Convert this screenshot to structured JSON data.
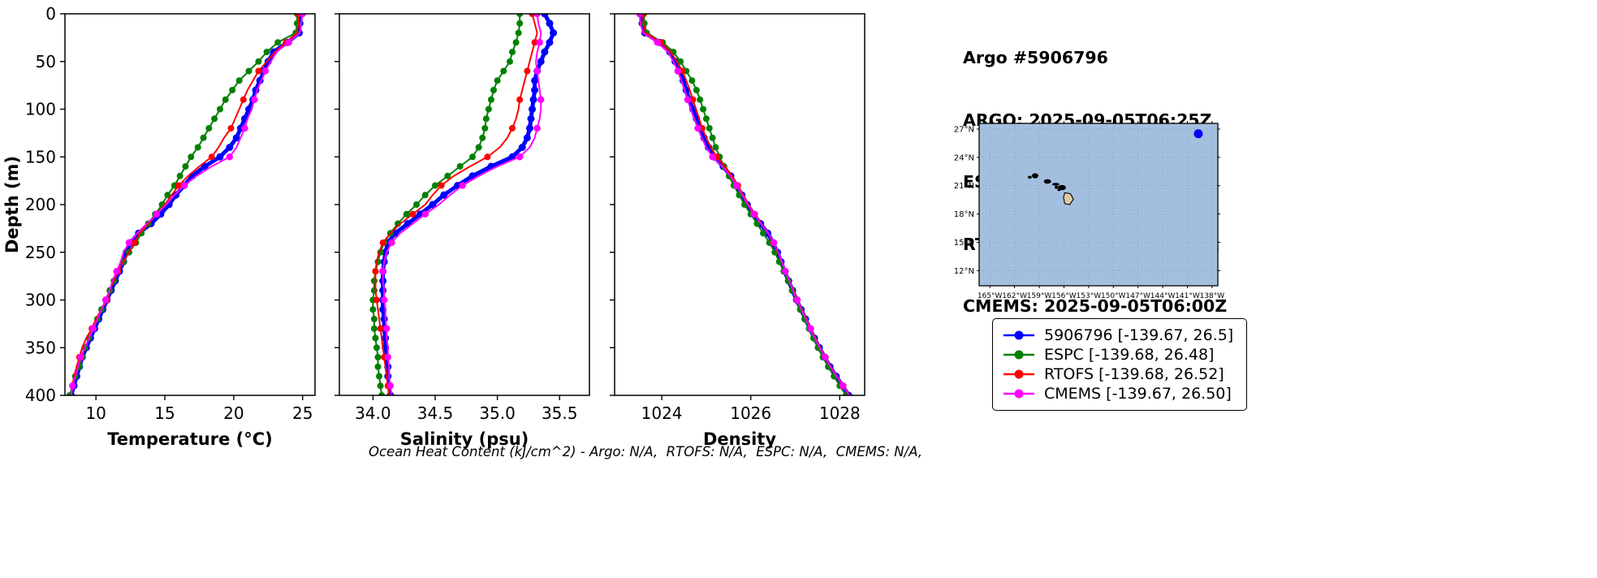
{
  "title_block": {
    "lines": [
      "Argo #5906796",
      "ARGO: 2025-09-05T06:25Z",
      "ESPC : 2025-09-05T06:00Z",
      "RTOFS: 2025-09-05T00:00Z",
      "CMEMS: 2025-09-05T06:00Z"
    ]
  },
  "caption": "Ocean Heat Content (kJ/cm^2) - Argo: N/A,  RTOFS: N/A,  ESPC: N/A,  CMEMS: N/A,",
  "legend": {
    "items": [
      {
        "label": "5906796 [-139.67, 26.5]",
        "color": "#0000ff"
      },
      {
        "label": "ESPC [-139.68, 26.48]",
        "color": "#008000"
      },
      {
        "label": "RTOFS [-139.68, 26.52]",
        "color": "#ff0000"
      },
      {
        "label": "CMEMS [-139.67, 26.50]",
        "color": "#ff00ff"
      }
    ]
  },
  "map": {
    "extent": {
      "lon_min": -166.3,
      "lon_max": -137.3,
      "lat_min": 10.4,
      "lat_max": 27.6
    },
    "lon_tick_values": [
      -165,
      -162,
      -159,
      -156,
      -153,
      -150,
      -147,
      -144,
      -141,
      -138
    ],
    "lon_tick_labels": [
      "165°W",
      "162°W",
      "159°W",
      "156°W",
      "153°W",
      "150°W",
      "147°W",
      "144°W",
      "141°W",
      "138°W"
    ],
    "lat_tick_values": [
      27,
      24,
      21,
      18,
      15,
      12
    ],
    "lat_tick_labels": [
      "27°N",
      "24°N",
      "21°N",
      "18°N",
      "15°N",
      "12°N"
    ],
    "water_color": "#a3bfe0",
    "land_color": "#dcc9a2",
    "float_marker": {
      "lon": -139.67,
      "lat": 26.5,
      "color": "#0000ff"
    },
    "islands": [
      {
        "lon": -160.15,
        "lat": 21.9,
        "rx": 2.5,
        "ry": 1.8
      },
      {
        "lon": -159.5,
        "lat": 22.05,
        "rx": 4.0,
        "ry": 3.2
      },
      {
        "lon": -158.0,
        "lat": 21.45,
        "rx": 4.5,
        "ry": 2.8
      },
      {
        "lon": -157.0,
        "lat": 21.15,
        "rx": 4.5,
        "ry": 1.8
      },
      {
        "lon": -156.92,
        "lat": 20.83,
        "rx": 2.0,
        "ry": 2.0
      },
      {
        "lon": -156.6,
        "lat": 20.55,
        "rx": 2.0,
        "ry": 1.4
      },
      {
        "lon": -156.25,
        "lat": 20.8,
        "rx": 5.0,
        "ry": 3.2
      }
    ],
    "big_island": [
      [
        -155.9,
        20.25
      ],
      [
        -155.2,
        20.15
      ],
      [
        -154.85,
        19.55
      ],
      [
        -155.3,
        19.0
      ],
      [
        -155.9,
        19.1
      ],
      [
        -156.05,
        19.75
      ]
    ]
  },
  "chart_data": [
    {
      "type": "line",
      "xlabel": "Temperature (°C)",
      "ylabel": "Depth (m)",
      "xlim": [
        7.75,
        25.9
      ],
      "ylim": [
        0,
        400
      ],
      "x_ticks": [
        10,
        15,
        20,
        25
      ],
      "x_tick_labels": [
        "10",
        "15",
        "20",
        "25"
      ],
      "y_ticks": [
        0,
        50,
        100,
        150,
        200,
        250,
        300,
        350,
        400
      ],
      "depths": [
        0,
        10,
        20,
        30,
        40,
        50,
        60,
        70,
        80,
        90,
        100,
        110,
        120,
        130,
        140,
        150,
        160,
        170,
        180,
        190,
        200,
        210,
        220,
        230,
        240,
        250,
        260,
        270,
        280,
        290,
        300,
        310,
        320,
        330,
        340,
        350,
        360,
        370,
        380,
        390,
        400
      ],
      "series": [
        {
          "name": "5906796",
          "color": "#0000ff",
          "line_width": 5,
          "marker_size": 4.5,
          "marker_every": 1,
          "values": [
            24.8,
            24.8,
            24.75,
            23.9,
            22.9,
            22.5,
            22.2,
            21.9,
            21.6,
            21.4,
            21.1,
            20.8,
            20.5,
            20.2,
            19.7,
            19.0,
            17.9,
            17.0,
            16.4,
            15.8,
            15.3,
            14.7,
            14.0,
            13.1,
            12.5,
            12.2,
            12.0,
            11.7,
            11.4,
            11.1,
            10.8,
            10.5,
            10.2,
            9.9,
            9.6,
            9.3,
            9.0,
            8.8,
            8.6,
            8.4,
            8.2
          ]
        },
        {
          "name": "ESPC",
          "color": "#008000",
          "line_width": 2,
          "marker_size": 4,
          "marker_every": 1,
          "values": [
            24.6,
            24.6,
            24.5,
            23.2,
            22.4,
            21.8,
            21.1,
            20.4,
            19.9,
            19.4,
            19.0,
            18.6,
            18.2,
            17.8,
            17.4,
            16.9,
            16.5,
            16.1,
            15.7,
            15.2,
            14.8,
            14.3,
            13.8,
            13.3,
            12.9,
            12.4,
            12.0,
            11.6,
            11.3,
            11.0,
            10.7,
            10.4,
            10.1,
            9.8,
            9.5,
            9.2,
            9.0,
            8.8,
            8.5,
            8.3,
            8.1
          ]
        },
        {
          "name": "RTOFS",
          "color": "#ff0000",
          "line_width": 2,
          "marker_size": 4,
          "marker_every": 3,
          "values": [
            24.7,
            24.7,
            24.6,
            23.8,
            23.0,
            22.4,
            21.8,
            21.4,
            21.0,
            20.7,
            20.4,
            20.1,
            19.8,
            19.3,
            18.9,
            18.4,
            17.5,
            16.7,
            16.0,
            15.5,
            15.0,
            14.4,
            13.8,
            13.2,
            12.8,
            12.4,
            12.0,
            11.6,
            11.3,
            11.0,
            10.8,
            10.4,
            10.0,
            9.7,
            9.3,
            9.0,
            8.8,
            8.6,
            8.4,
            8.3,
            8.2
          ]
        },
        {
          "name": "CMEMS",
          "color": "#ff00ff",
          "line_width": 2,
          "marker_size": 4.2,
          "marker_every": 3,
          "values": [
            25.0,
            24.9,
            24.8,
            24.0,
            23.1,
            22.7,
            22.3,
            22.0,
            21.7,
            21.5,
            21.3,
            21.0,
            20.8,
            20.5,
            20.2,
            19.7,
            18.4,
            17.3,
            16.4,
            15.7,
            15.1,
            14.4,
            13.7,
            13.0,
            12.4,
            12.0,
            11.8,
            11.5,
            11.2,
            11.0,
            10.7,
            10.4,
            10.1,
            9.8,
            9.5,
            9.2,
            8.9,
            8.7,
            8.5,
            8.3,
            8.2
          ]
        }
      ]
    },
    {
      "type": "line",
      "xlabel": "Salinity (psu)",
      "ylabel": "Depth (m)",
      "xlim": [
        33.73,
        35.74
      ],
      "ylim": [
        0,
        400
      ],
      "x_ticks": [
        34.0,
        34.5,
        35.0,
        35.5
      ],
      "x_tick_labels": [
        "34.0",
        "34.5",
        "35.0",
        "35.5"
      ],
      "y_ticks": [
        0,
        50,
        100,
        150,
        200,
        250,
        300,
        350,
        400
      ],
      "depths": [
        0,
        10,
        20,
        30,
        40,
        50,
        60,
        70,
        80,
        90,
        100,
        110,
        120,
        130,
        140,
        150,
        160,
        170,
        180,
        190,
        200,
        210,
        220,
        230,
        240,
        250,
        260,
        270,
        280,
        290,
        300,
        310,
        320,
        330,
        340,
        350,
        360,
        370,
        380,
        390,
        400
      ],
      "series": [
        {
          "name": "5906796",
          "color": "#0000ff",
          "line_width": 5,
          "marker_size": 4.5,
          "marker_every": 1,
          "values": [
            35.38,
            35.42,
            35.45,
            35.42,
            35.38,
            35.35,
            35.32,
            35.3,
            35.3,
            35.29,
            35.28,
            35.27,
            35.26,
            35.24,
            35.2,
            35.12,
            34.95,
            34.8,
            34.68,
            34.57,
            34.48,
            34.38,
            34.28,
            34.18,
            34.12,
            34.1,
            34.09,
            34.08,
            34.08,
            34.08,
            34.08,
            34.08,
            34.09,
            34.09,
            34.1,
            34.1,
            34.11,
            34.12,
            34.12,
            34.13,
            34.14
          ]
        },
        {
          "name": "ESPC",
          "color": "#008000",
          "line_width": 2,
          "marker_size": 4,
          "marker_every": 1,
          "values": [
            35.18,
            35.18,
            35.17,
            35.15,
            35.12,
            35.1,
            35.05,
            35.0,
            34.97,
            34.95,
            34.93,
            34.91,
            34.9,
            34.88,
            34.85,
            34.8,
            34.7,
            34.6,
            34.5,
            34.42,
            34.35,
            34.27,
            34.2,
            34.14,
            34.09,
            34.06,
            34.04,
            34.02,
            34.01,
            34.01,
            34.0,
            34.0,
            34.01,
            34.01,
            34.02,
            34.03,
            34.04,
            34.04,
            34.05,
            34.06,
            34.07
          ]
        },
        {
          "name": "RTOFS",
          "color": "#ff0000",
          "line_width": 2,
          "marker_size": 4,
          "marker_every": 3,
          "values": [
            35.28,
            35.3,
            35.32,
            35.3,
            35.28,
            35.26,
            35.24,
            35.22,
            35.2,
            35.18,
            35.17,
            35.15,
            35.12,
            35.08,
            35.02,
            34.92,
            34.78,
            34.65,
            34.55,
            34.48,
            34.42,
            34.32,
            34.22,
            34.14,
            34.08,
            34.05,
            34.03,
            34.02,
            34.02,
            34.02,
            34.03,
            34.04,
            34.05,
            34.06,
            34.07,
            34.08,
            34.09,
            34.1,
            34.11,
            34.12,
            34.13
          ]
        },
        {
          "name": "CMEMS",
          "color": "#ff00ff",
          "line_width": 2,
          "marker_size": 4.2,
          "marker_every": 3,
          "values": [
            35.32,
            35.33,
            35.35,
            35.34,
            35.32,
            35.31,
            35.32,
            35.33,
            35.34,
            35.35,
            35.35,
            35.34,
            35.32,
            35.3,
            35.26,
            35.18,
            35.0,
            34.85,
            34.72,
            34.62,
            34.53,
            34.42,
            34.32,
            34.22,
            34.15,
            34.11,
            34.09,
            34.08,
            34.08,
            34.09,
            34.09,
            34.1,
            34.1,
            34.11,
            34.11,
            34.12,
            34.12,
            34.13,
            34.13,
            34.14,
            34.15
          ]
        }
      ]
    },
    {
      "type": "line",
      "xlabel": "Density",
      "ylabel": "Depth (m)",
      "xlim": [
        1022.94,
        1028.56
      ],
      "ylim": [
        0,
        400
      ],
      "x_ticks": [
        1024,
        1026,
        1028
      ],
      "x_tick_labels": [
        "1024",
        "1026",
        "1028"
      ],
      "y_ticks": [
        0,
        50,
        100,
        150,
        200,
        250,
        300,
        350,
        400
      ],
      "depths": [
        0,
        10,
        20,
        30,
        40,
        50,
        60,
        70,
        80,
        90,
        100,
        110,
        120,
        130,
        140,
        150,
        160,
        170,
        180,
        190,
        200,
        210,
        220,
        230,
        240,
        250,
        260,
        270,
        280,
        290,
        300,
        310,
        320,
        330,
        340,
        350,
        360,
        370,
        380,
        390,
        400
      ],
      "series": [
        {
          "name": "5906796",
          "color": "#0000ff",
          "line_width": 5,
          "marker_size": 4.5,
          "marker_every": 1,
          "values": [
            1023.55,
            1023.56,
            1023.62,
            1023.95,
            1024.18,
            1024.3,
            1024.4,
            1024.48,
            1024.55,
            1024.62,
            1024.7,
            1024.78,
            1024.86,
            1024.95,
            1025.05,
            1025.18,
            1025.38,
            1025.55,
            1025.68,
            1025.8,
            1025.92,
            1026.06,
            1026.22,
            1026.38,
            1026.5,
            1026.6,
            1026.68,
            1026.76,
            1026.85,
            1026.94,
            1027.03,
            1027.13,
            1027.23,
            1027.33,
            1027.43,
            1027.54,
            1027.66,
            1027.78,
            1027.92,
            1028.06,
            1028.2
          ]
        },
        {
          "name": "ESPC",
          "color": "#008000",
          "line_width": 2,
          "marker_size": 4,
          "marker_every": 1,
          "values": [
            1023.6,
            1023.61,
            1023.66,
            1024.02,
            1024.26,
            1024.42,
            1024.55,
            1024.68,
            1024.78,
            1024.86,
            1024.93,
            1025.0,
            1025.07,
            1025.14,
            1025.21,
            1025.3,
            1025.4,
            1025.51,
            1025.62,
            1025.74,
            1025.86,
            1026.0,
            1026.14,
            1026.28,
            1026.42,
            1026.54,
            1026.64,
            1026.74,
            1026.84,
            1026.93,
            1027.02,
            1027.11,
            1027.21,
            1027.31,
            1027.41,
            1027.51,
            1027.62,
            1027.74,
            1027.87,
            1028.0,
            1028.14
          ]
        },
        {
          "name": "RTOFS",
          "color": "#ff0000",
          "line_width": 2,
          "marker_size": 4,
          "marker_every": 3,
          "values": [
            1023.58,
            1023.59,
            1023.64,
            1023.98,
            1024.2,
            1024.34,
            1024.46,
            1024.55,
            1024.63,
            1024.7,
            1024.77,
            1024.84,
            1024.91,
            1025.0,
            1025.1,
            1025.24,
            1025.42,
            1025.58,
            1025.71,
            1025.83,
            1025.95,
            1026.09,
            1026.24,
            1026.39,
            1026.51,
            1026.61,
            1026.7,
            1026.78,
            1026.87,
            1026.96,
            1027.05,
            1027.15,
            1027.25,
            1027.35,
            1027.45,
            1027.56,
            1027.68,
            1027.8,
            1027.94,
            1028.08,
            1028.22
          ]
        },
        {
          "name": "CMEMS",
          "color": "#ff00ff",
          "line_width": 2,
          "marker_size": 4.2,
          "marker_every": 3,
          "values": [
            1023.5,
            1023.52,
            1023.58,
            1023.9,
            1024.14,
            1024.26,
            1024.36,
            1024.44,
            1024.51,
            1024.58,
            1024.65,
            1024.73,
            1024.81,
            1024.9,
            1025.0,
            1025.14,
            1025.36,
            1025.54,
            1025.68,
            1025.81,
            1025.93,
            1026.07,
            1026.23,
            1026.39,
            1026.52,
            1026.62,
            1026.7,
            1026.78,
            1026.87,
            1026.95,
            1027.04,
            1027.14,
            1027.24,
            1027.34,
            1027.44,
            1027.55,
            1027.67,
            1027.79,
            1027.93,
            1028.07,
            1028.21
          ]
        }
      ]
    }
  ]
}
